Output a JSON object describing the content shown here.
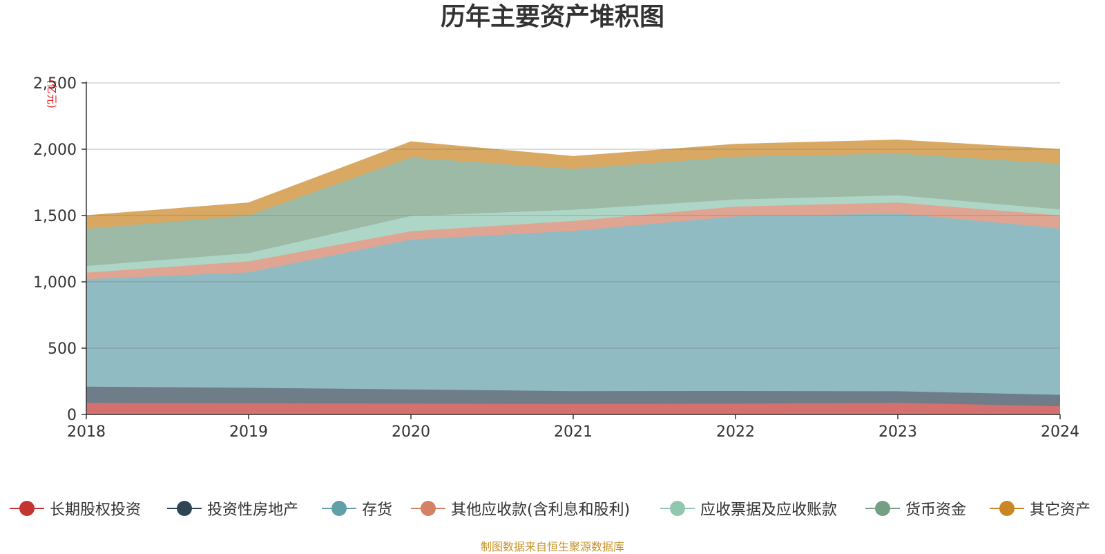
{
  "title": "历年主要资产堆积图",
  "source_note": "制图数据来自恒生聚源数据库",
  "chart_data": {
    "type": "area",
    "stacked": true,
    "title": "历年主要资产堆积图",
    "ylabel": "(亿元)",
    "xlabel": "",
    "x": [
      "2018",
      "2019",
      "2020",
      "2021",
      "2022",
      "2023",
      "2024"
    ],
    "ylim": [
      0,
      2500
    ],
    "yticks": [
      0,
      500,
      1000,
      1500,
      2000,
      2500
    ],
    "ytick_labels": [
      "0",
      "500",
      "1,000",
      "1,500",
      "2,000",
      "2,500"
    ],
    "grid": true,
    "legend_position": "bottom",
    "series": [
      {
        "name": "长期股权投资",
        "color": "#c23531",
        "fill": "#d4706e",
        "values": [
          88,
          85,
          83,
          79,
          82,
          88,
          62
        ]
      },
      {
        "name": "投资性房地产",
        "color": "#2f4554",
        "fill": "#6e7d88",
        "values": [
          122,
          116,
          106,
          97,
          95,
          87,
          86
        ]
      },
      {
        "name": "存货",
        "color": "#61a0a8",
        "fill": "#91bbc2",
        "values": [
          810,
          871,
          1130,
          1208,
          1317,
          1340,
          1255
        ]
      },
      {
        "name": "其他应收款(含利息和股利)",
        "color": "#d48265",
        "fill": "#e0a592",
        "values": [
          50,
          82,
          63,
          75,
          73,
          83,
          98
        ]
      },
      {
        "name": "应收票据及应收账款",
        "color": "#91c7ae",
        "fill": "#aed6c6",
        "values": [
          50,
          62,
          115,
          85,
          54,
          54,
          45
        ]
      },
      {
        "name": "货币资金",
        "color": "#749f83",
        "fill": "#9cbaa6",
        "values": [
          280,
          285,
          440,
          307,
          322,
          315,
          345
        ]
      },
      {
        "name": "其它资产",
        "color": "#ca8622",
        "fill": "#d9a862",
        "values": [
          100,
          95,
          120,
          95,
          95,
          103,
          108
        ]
      }
    ]
  }
}
